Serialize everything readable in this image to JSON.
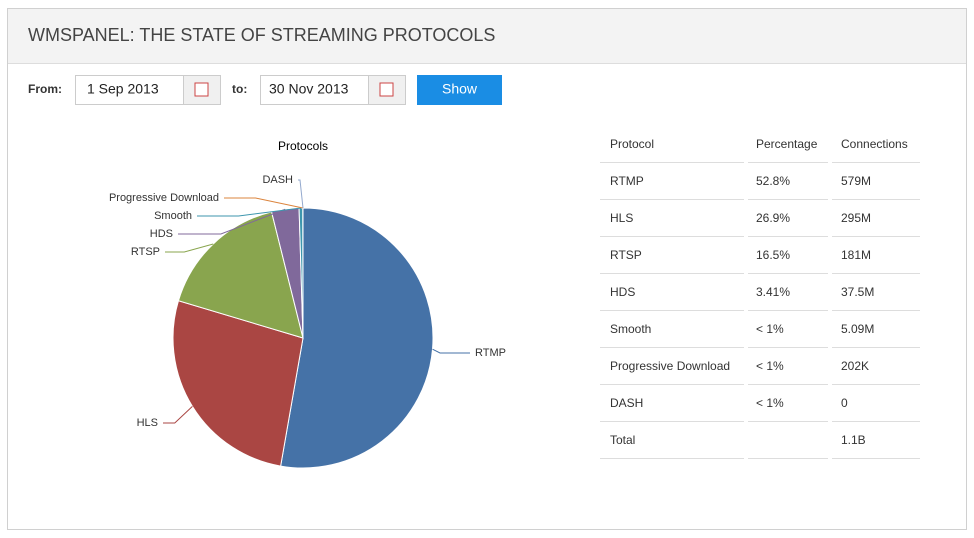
{
  "header": {
    "title": "WMSPANEL: THE STATE OF STREAMING PROTOCOLS"
  },
  "filters": {
    "from_label": "From:",
    "from_value": "1 Sep 2013",
    "to_label": "to:",
    "to_value": "30 Nov 2013",
    "button": "Show"
  },
  "chart_data": {
    "type": "pie",
    "title": "Protocols",
    "categories": [
      "RTMP",
      "HLS",
      "RTSP",
      "HDS",
      "Smooth",
      "Progressive Download",
      "DASH"
    ],
    "values": [
      52.8,
      26.9,
      16.5,
      3.41,
      0.46,
      0.02,
      0
    ],
    "colors": [
      "#4572a7",
      "#aa4643",
      "#89a54e",
      "#80699b",
      "#3d96ae",
      "#db843d",
      "#92a8cd"
    ]
  },
  "table": {
    "columns": [
      "Protocol",
      "Percentage",
      "Connections"
    ],
    "rows": [
      [
        "RTMP",
        "52.8%",
        "579M"
      ],
      [
        "HLS",
        "26.9%",
        "295M"
      ],
      [
        "RTSP",
        "16.5%",
        "181M"
      ],
      [
        "HDS",
        "3.41%",
        "37.5M"
      ],
      [
        "Smooth",
        "< 1%",
        "5.09M"
      ],
      [
        "Progressive Download",
        "< 1%",
        "202K"
      ],
      [
        "DASH",
        "< 1%",
        "0"
      ],
      [
        "Total",
        null,
        "1.1B"
      ]
    ]
  }
}
